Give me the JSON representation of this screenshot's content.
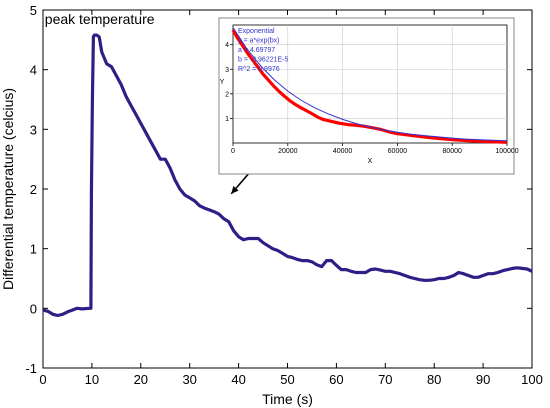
{
  "chart_data": [
    {
      "type": "line",
      "xlabel": "Time (s)",
      "ylabel": "Differential temperature (celcius)",
      "xlim": [
        0,
        100
      ],
      "ylim": [
        -1,
        5
      ],
      "xticks": [
        0,
        10,
        20,
        30,
        40,
        50,
        60,
        70,
        80,
        90,
        100
      ],
      "yticks": [
        -1,
        0,
        1,
        2,
        3,
        4,
        5
      ],
      "grid": false,
      "color": "#2d1f86",
      "annotations": [
        {
          "text": "peak temperature",
          "x": 11,
          "y": 4.85
        }
      ],
      "arrow": {
        "from": [
          42.5,
          2.3
        ],
        "to": [
          38.5,
          1.92
        ]
      },
      "series": [
        {
          "x": [
            0,
            1,
            2,
            3,
            4,
            5,
            6,
            7,
            8,
            9.5,
            9.8,
            9.9,
            10.1,
            10.3,
            10.5,
            11,
            11.5,
            12,
            13,
            14,
            15,
            16,
            17,
            18,
            19,
            20,
            21,
            22,
            23,
            24,
            25,
            26,
            27,
            28,
            29,
            30,
            31,
            32,
            33,
            34,
            35,
            36,
            37,
            38,
            39,
            40,
            41,
            42,
            43,
            44,
            45,
            46,
            47,
            48,
            49,
            50,
            51,
            52,
            53,
            54,
            55,
            56,
            57,
            58,
            59,
            60,
            61,
            62,
            63,
            64,
            65,
            66,
            67,
            68,
            69,
            70,
            71,
            72,
            73,
            74,
            75,
            76,
            77,
            78,
            79,
            80,
            81,
            82,
            83,
            84,
            85,
            86,
            87,
            88,
            89,
            90,
            91,
            92,
            93,
            94,
            95,
            96,
            97,
            98,
            99,
            100
          ],
          "y": [
            -0.03,
            -0.05,
            -0.1,
            -0.12,
            -0.1,
            -0.06,
            -0.03,
            0.0,
            -0.01,
            0.0,
            0.0,
            1.9,
            3.5,
            4.55,
            4.58,
            4.58,
            4.55,
            4.3,
            4.1,
            4.05,
            3.9,
            3.75,
            3.55,
            3.4,
            3.25,
            3.1,
            2.95,
            2.8,
            2.65,
            2.5,
            2.5,
            2.35,
            2.15,
            2.0,
            1.9,
            1.85,
            1.8,
            1.72,
            1.68,
            1.65,
            1.62,
            1.58,
            1.5,
            1.45,
            1.3,
            1.2,
            1.15,
            1.17,
            1.17,
            1.17,
            1.1,
            1.05,
            1.0,
            0.97,
            0.92,
            0.87,
            0.85,
            0.82,
            0.8,
            0.8,
            0.78,
            0.73,
            0.7,
            0.8,
            0.8,
            0.72,
            0.65,
            0.65,
            0.62,
            0.6,
            0.6,
            0.6,
            0.65,
            0.66,
            0.64,
            0.62,
            0.62,
            0.6,
            0.58,
            0.55,
            0.52,
            0.5,
            0.48,
            0.47,
            0.47,
            0.48,
            0.5,
            0.5,
            0.52,
            0.55,
            0.6,
            0.58,
            0.55,
            0.52,
            0.52,
            0.55,
            0.58,
            0.58,
            0.6,
            0.63,
            0.65,
            0.67,
            0.68,
            0.67,
            0.66,
            0.62
          ]
        }
      ]
    },
    {
      "type": "line",
      "xlabel": "X",
      "ylabel": "Y",
      "xlim": [
        0,
        100000
      ],
      "ylim": [
        0,
        4.8
      ],
      "xticks": [
        0,
        20000,
        40000,
        60000,
        80000,
        100000
      ],
      "yticks": [
        1,
        2,
        3,
        4
      ],
      "grid": true,
      "legend_text": [
        "Exponential",
        "y = a*exp(bx)",
        "a = 4.69797",
        "b = -3.96221E-5",
        "R^2 = 0.9976"
      ],
      "series": [
        {
          "color": "#ff0000",
          "x": [
            0,
            1500,
            3000,
            5000,
            7000,
            9000,
            11000,
            13000,
            15000,
            17000,
            19000,
            21000,
            23000,
            25000,
            27000,
            29000,
            31000,
            33000,
            36000,
            39000,
            42000,
            45000,
            48000,
            51000,
            54000,
            57000,
            60000,
            64000,
            68000,
            72000,
            76000,
            80000,
            85000,
            90000,
            95000,
            100000
          ],
          "y": [
            4.6,
            4.3,
            4.05,
            3.7,
            3.4,
            3.1,
            2.8,
            2.55,
            2.3,
            2.08,
            1.88,
            1.7,
            1.55,
            1.42,
            1.3,
            1.18,
            1.05,
            0.95,
            0.88,
            0.8,
            0.75,
            0.72,
            0.68,
            0.62,
            0.55,
            0.45,
            0.38,
            0.32,
            0.27,
            0.22,
            0.18,
            0.14,
            0.1,
            0.07,
            0.05,
            0.03
          ]
        },
        {
          "color": "#3333cc",
          "x": [
            0,
            5000,
            10000,
            15000,
            20000,
            25000,
            30000,
            35000,
            40000,
            45000,
            50000,
            55000,
            60000,
            65000,
            70000,
            75000,
            80000,
            85000,
            90000,
            95000,
            100000
          ],
          "y": [
            4.69797,
            3.84,
            3.15,
            2.58,
            2.11,
            1.73,
            1.42,
            1.17,
            0.96,
            0.79,
            0.65,
            0.53,
            0.44,
            0.36,
            0.3,
            0.25,
            0.2,
            0.16,
            0.13,
            0.11,
            0.09
          ]
        }
      ]
    }
  ]
}
